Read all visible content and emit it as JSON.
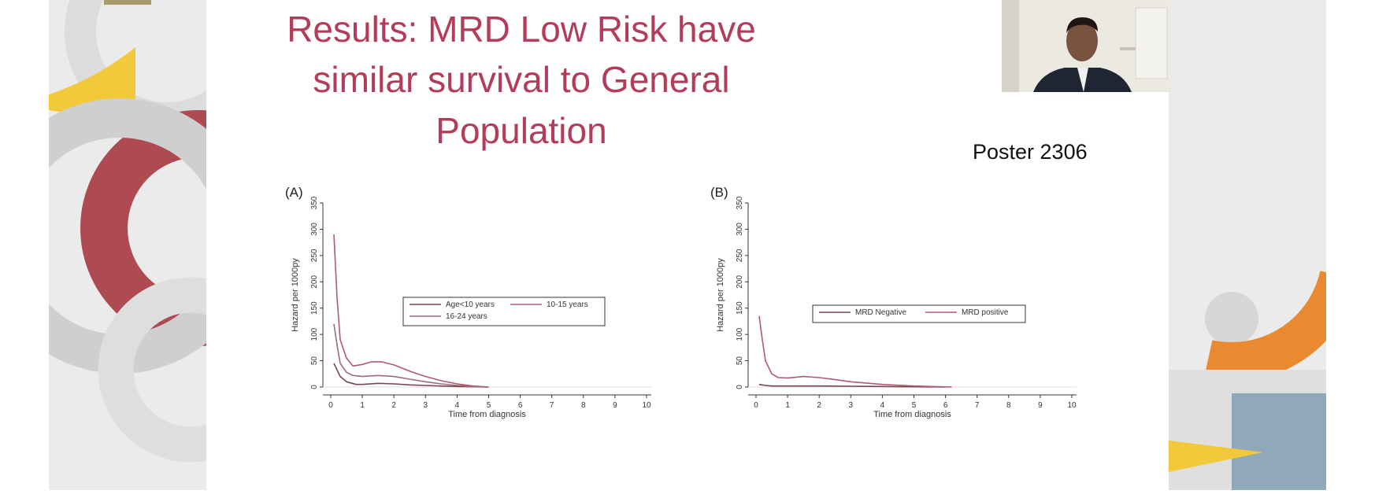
{
  "slide": {
    "title_lines": [
      "Results: MRD Low Risk have",
      "similar survival to General",
      "Population"
    ],
    "poster_label": "Poster 2306",
    "title_color": "#b23c5a"
  },
  "webcam": {
    "icon": "presenter-video-feed"
  },
  "chart_data": [
    {
      "type": "line",
      "panel_label": "(A)",
      "xlabel": "Time from diagnosis",
      "ylabel": "Hazard per 1000py",
      "xlim": [
        0,
        10
      ],
      "ylim": [
        0,
        350
      ],
      "xticks": [
        "0",
        "1",
        "2",
        "3",
        "4",
        "5",
        "6",
        "7",
        "8",
        "9",
        "10"
      ],
      "yticks": [
        "0",
        "50",
        "100",
        "150",
        "200",
        "250",
        "300",
        "350"
      ],
      "legend": [
        "Age<10 years",
        "10-15 years",
        "16-24 years"
      ],
      "series": [
        {
          "name": "Age<10 years",
          "color": "#7a4550",
          "x": [
            0.1,
            0.3,
            0.5,
            0.8,
            1.0,
            1.5,
            2.0,
            2.5,
            3.0,
            3.5,
            4.0,
            4.5,
            5.0
          ],
          "y": [
            45,
            20,
            10,
            5,
            5,
            7,
            6,
            4,
            3,
            2,
            1,
            0.5,
            0
          ]
        },
        {
          "name": "10-15 years",
          "color": "#b05a6e",
          "x": [
            0.1,
            0.2,
            0.3,
            0.5,
            0.7,
            1.0,
            1.3,
            1.6,
            2.0,
            2.5,
            3.0,
            3.5,
            4.0,
            4.5,
            5.0
          ],
          "y": [
            290,
            170,
            90,
            55,
            40,
            43,
            48,
            48,
            42,
            30,
            20,
            12,
            6,
            2,
            0
          ]
        },
        {
          "name": "16-24 years",
          "color": "#9b6b78",
          "x": [
            0.1,
            0.2,
            0.3,
            0.5,
            0.7,
            1.0,
            1.5,
            2.0,
            2.5,
            3.0,
            3.5,
            4.0,
            4.5,
            5.0
          ],
          "y": [
            120,
            80,
            45,
            28,
            22,
            20,
            22,
            20,
            15,
            10,
            6,
            3,
            1,
            0
          ]
        }
      ]
    },
    {
      "type": "line",
      "panel_label": "(B)",
      "xlabel": "Time from diagnosis",
      "ylabel": "Hazard per 1000py",
      "xlim": [
        0,
        10
      ],
      "ylim": [
        0,
        350
      ],
      "xticks": [
        "0",
        "1",
        "2",
        "3",
        "4",
        "5",
        "6",
        "7",
        "8",
        "9",
        "10"
      ],
      "yticks": [
        "0",
        "50",
        "100",
        "150",
        "200",
        "250",
        "300",
        "350"
      ],
      "legend": [
        "MRD Negative",
        "MRD positive"
      ],
      "series": [
        {
          "name": "MRD Negative",
          "color": "#6e4650",
          "x": [
            0.1,
            0.3,
            0.5,
            1.0,
            2.0,
            3.0,
            4.0,
            5.0,
            6.0
          ],
          "y": [
            5,
            3,
            2,
            2,
            2,
            1.5,
            1,
            0.5,
            0
          ]
        },
        {
          "name": "MRD positive",
          "color": "#b05a6e",
          "x": [
            0.1,
            0.2,
            0.3,
            0.5,
            0.7,
            1.0,
            1.5,
            2.0,
            2.5,
            3.0,
            4.0,
            5.0,
            6.2
          ],
          "y": [
            135,
            90,
            50,
            25,
            18,
            17,
            20,
            18,
            14,
            10,
            5,
            2,
            0
          ]
        }
      ]
    }
  ]
}
